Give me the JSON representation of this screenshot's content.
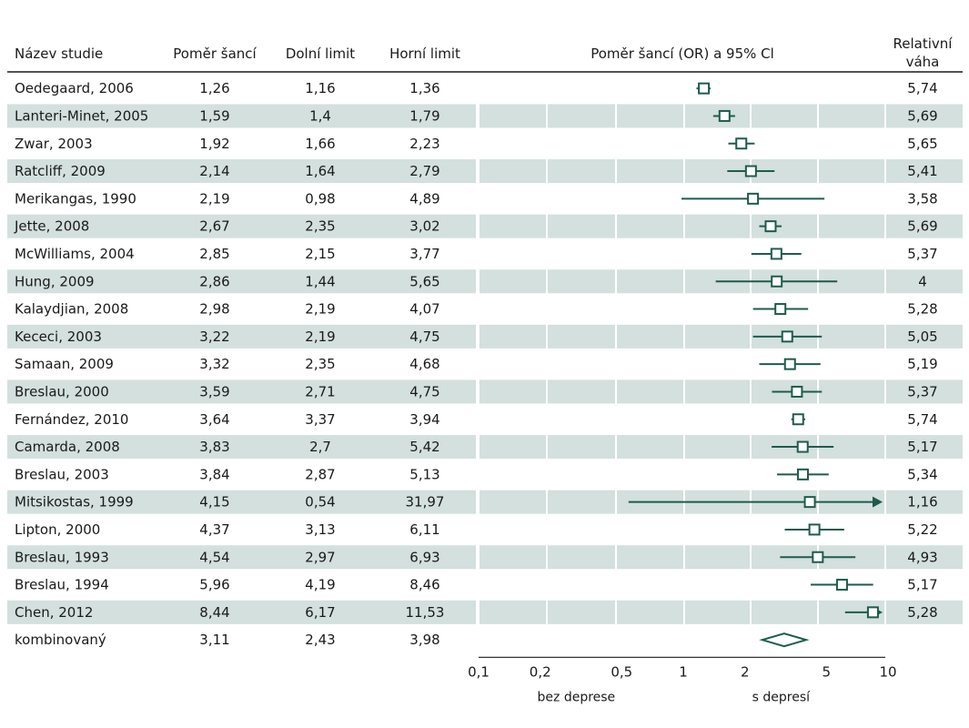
{
  "columns": {
    "study": "Název studie",
    "or": "Poměr šancí",
    "lower": "Dolní limit",
    "upper": "Horní limit",
    "plot": "Poměr šancí (OR) a 95% Cl",
    "weight_line1": "Relativní",
    "weight_line2": "váha"
  },
  "rows": [
    {
      "study": "Oedegaard, 2006",
      "or": "1,26",
      "lower": "1,16",
      "upper": "1,36",
      "weight": "5,74"
    },
    {
      "study": "Lanteri-Minet, 2005",
      "or": "1,59",
      "lower": "1,4",
      "upper": "1,79",
      "weight": "5,69"
    },
    {
      "study": "Zwar, 2003",
      "or": "1,92",
      "lower": "1,66",
      "upper": "2,23",
      "weight": "5,65"
    },
    {
      "study": "Ratcliff, 2009",
      "or": "2,14",
      "lower": "1,64",
      "upper": "2,79",
      "weight": "5,41"
    },
    {
      "study": "Merikangas, 1990",
      "or": "2,19",
      "lower": "0,98",
      "upper": "4,89",
      "weight": "3,58"
    },
    {
      "study": "Jette, 2008",
      "or": "2,67",
      "lower": "2,35",
      "upper": "3,02",
      "weight": "5,69"
    },
    {
      "study": "McWilliams, 2004",
      "or": "2,85",
      "lower": "2,15",
      "upper": "3,77",
      "weight": "5,37"
    },
    {
      "study": "Hung, 2009",
      "or": "2,86",
      "lower": "1,44",
      "upper": "5,65",
      "weight": "4"
    },
    {
      "study": "Kalaydjian, 2008",
      "or": "2,98",
      "lower": "2,19",
      "upper": "4,07",
      "weight": "5,28"
    },
    {
      "study": "Kececi, 2003",
      "or": "3,22",
      "lower": "2,19",
      "upper": "4,75",
      "weight": "5,05"
    },
    {
      "study": "Samaan, 2009",
      "or": "3,32",
      "lower": "2,35",
      "upper": "4,68",
      "weight": "5,19"
    },
    {
      "study": "Breslau, 2000",
      "or": "3,59",
      "lower": "2,71",
      "upper": "4,75",
      "weight": "5,37"
    },
    {
      "study": "Fernández, 2010",
      "or": "3,64",
      "lower": "3,37",
      "upper": "3,94",
      "weight": "5,74"
    },
    {
      "study": "Camarda, 2008",
      "or": "3,83",
      "lower": "2,7",
      "upper": "5,42",
      "weight": "5,17"
    },
    {
      "study": "Breslau, 2003",
      "or": "3,84",
      "lower": "2,87",
      "upper": "5,13",
      "weight": "5,34"
    },
    {
      "study": "Mitsikostas, 1999",
      "or": "4,15",
      "lower": "0,54",
      "upper": "31,97",
      "weight": "1,16"
    },
    {
      "study": "Lipton, 2000",
      "or": "4,37",
      "lower": "3,13",
      "upper": "6,11",
      "weight": "5,22"
    },
    {
      "study": "Breslau, 1993",
      "or": "4,54",
      "lower": "2,97",
      "upper": "6,93",
      "weight": "4,93"
    },
    {
      "study": "Breslau, 1994",
      "or": "5,96",
      "lower": "4,19",
      "upper": "8,46",
      "weight": "5,17"
    },
    {
      "study": "Chen, 2012",
      "or": "8,44",
      "lower": "6,17",
      "upper": "11,53",
      "weight": "5,28"
    }
  ],
  "combined": {
    "study": "kombinovaný",
    "or": "3,11",
    "lower": "2,43",
    "upper": "3,98"
  },
  "axis": {
    "ticks": [
      "0,1",
      "0,2",
      "0,5",
      "1",
      "2",
      "5",
      "10"
    ],
    "left_label": "bez deprese",
    "right_label": "s depresí"
  },
  "colors": {
    "stripe": "#d3e0dd",
    "marker": "#1e5b4e",
    "text": "#1a1a1a"
  },
  "chart_data": {
    "type": "forest",
    "title": "Poměr šancí (OR) a 95% Cl",
    "x_scale": "log",
    "xlim": [
      0.1,
      10
    ],
    "x_ticks": [
      0.1,
      0.2,
      0.5,
      1,
      2,
      5,
      10
    ],
    "categories": [
      "Oedegaard, 2006",
      "Lanteri-Minet, 2005",
      "Zwar, 2003",
      "Ratcliff, 2009",
      "Merikangas, 1990",
      "Jette, 2008",
      "McWilliams, 2004",
      "Hung, 2009",
      "Kalaydjian, 2008",
      "Kececi, 2003",
      "Samaan, 2009",
      "Breslau, 2000",
      "Fernández, 2010",
      "Camarda, 2008",
      "Breslau, 2003",
      "Mitsikostas, 1999",
      "Lipton, 2000",
      "Breslau, 1993",
      "Breslau, 1994",
      "Chen, 2012"
    ],
    "or": [
      1.26,
      1.59,
      1.92,
      2.14,
      2.19,
      2.67,
      2.85,
      2.86,
      2.98,
      3.22,
      3.32,
      3.59,
      3.64,
      3.83,
      3.84,
      4.15,
      4.37,
      4.54,
      5.96,
      8.44
    ],
    "lower": [
      1.16,
      1.4,
      1.66,
      1.64,
      0.98,
      2.35,
      2.15,
      1.44,
      2.19,
      2.19,
      2.35,
      2.71,
      3.37,
      2.7,
      2.87,
      0.54,
      3.13,
      2.97,
      4.19,
      6.17
    ],
    "upper": [
      1.36,
      1.79,
      2.23,
      2.79,
      4.89,
      3.02,
      3.77,
      5.65,
      4.07,
      4.75,
      4.68,
      4.75,
      3.94,
      5.42,
      5.13,
      31.97,
      6.11,
      6.93,
      8.46,
      11.53
    ],
    "weight": [
      5.74,
      5.69,
      5.65,
      5.41,
      3.58,
      5.69,
      5.37,
      4,
      5.28,
      5.05,
      5.19,
      5.37,
      5.74,
      5.17,
      5.34,
      1.16,
      5.22,
      4.93,
      5.17,
      5.28
    ],
    "combined": {
      "or": 3.11,
      "lower": 2.43,
      "upper": 3.98
    }
  }
}
